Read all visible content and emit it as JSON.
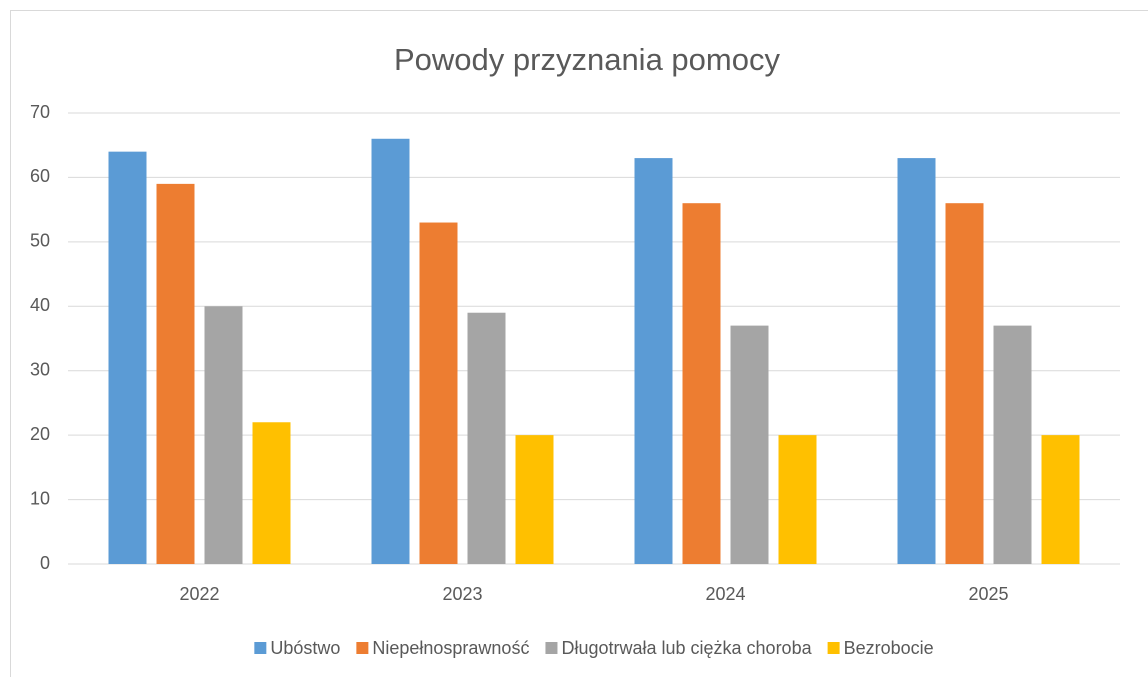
{
  "chart_data": {
    "type": "bar",
    "title": "Powody przyznania pomocy",
    "categories": [
      "2022",
      "2023",
      "2024",
      "2025"
    ],
    "series": [
      {
        "name": "Ubóstwo",
        "color": "#5b9bd5",
        "values": [
          64,
          66,
          63,
          63
        ]
      },
      {
        "name": "Niepełnosprawność",
        "color": "#ed7d31",
        "values": [
          59,
          53,
          56,
          56
        ]
      },
      {
        "name": "Długotrwała lub ciężka choroba",
        "color": "#a5a5a5",
        "values": [
          40,
          39,
          37,
          37
        ]
      },
      {
        "name": "Bezrobocie",
        "color": "#ffc000",
        "values": [
          22,
          20,
          20,
          20
        ]
      }
    ],
    "ylim": [
      0,
      70
    ],
    "yticks": [
      0,
      10,
      20,
      30,
      40,
      50,
      60,
      70
    ],
    "grid": true,
    "legend": "bottom"
  }
}
